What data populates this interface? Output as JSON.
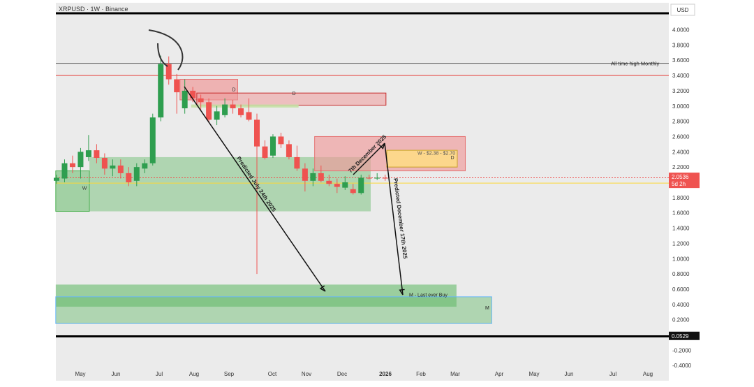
{
  "header": {
    "symbol_label": "XRPUSD · 1W · Binance",
    "currency_button": "USD"
  },
  "colors": {
    "bull": "#26a69a",
    "bull_body": "#2e9e4f",
    "bear": "#ef5350",
    "demand_zone": "#66bb6a",
    "supply_zone": "#ef9a9a",
    "highlight_zone": "#ffe082",
    "blue_zone": "#64b5f6"
  },
  "chart_data": {
    "type": "candlestick",
    "title": "XRPUSD · 1W · Binance",
    "ylim": [
      -0.45,
      4.0
    ],
    "y_ticks": [
      "4.0000",
      "3.8000",
      "3.6000",
      "3.4000",
      "3.2000",
      "3.0000",
      "2.8000",
      "2.6000",
      "2.4000",
      "2.2000",
      "2.0000",
      "1.8000",
      "1.6000",
      "1.4000",
      "1.2000",
      "1.0000",
      "0.8000",
      "0.6000",
      "0.4000",
      "0.2000",
      "0.0000",
      "-0.2000",
      "-0.4000"
    ],
    "x_ticks": [
      "May",
      "Jun",
      "Jul",
      "Aug",
      "Sep",
      "Oct",
      "Nov",
      "Dec",
      "2026",
      "Feb",
      "Mar",
      "Apr",
      "May",
      "Jun",
      "Jul",
      "Aug"
    ],
    "candles": [
      {
        "o": 2.02,
        "h": 2.1,
        "l": 1.98,
        "c": 2.06
      },
      {
        "o": 2.05,
        "h": 2.3,
        "l": 2.0,
        "c": 2.25
      },
      {
        "o": 2.25,
        "h": 2.35,
        "l": 2.12,
        "c": 2.2
      },
      {
        "o": 2.2,
        "h": 2.45,
        "l": 2.05,
        "c": 2.4
      },
      {
        "o": 2.33,
        "h": 2.62,
        "l": 2.28,
        "c": 2.42
      },
      {
        "o": 2.42,
        "h": 2.5,
        "l": 2.25,
        "c": 2.32
      },
      {
        "o": 2.32,
        "h": 2.38,
        "l": 2.1,
        "c": 2.18
      },
      {
        "o": 2.18,
        "h": 2.3,
        "l": 2.08,
        "c": 2.22
      },
      {
        "o": 2.22,
        "h": 2.3,
        "l": 2.05,
        "c": 2.12
      },
      {
        "o": 2.12,
        "h": 2.2,
        "l": 1.95,
        "c": 2.0
      },
      {
        "o": 2.02,
        "h": 2.25,
        "l": 1.95,
        "c": 2.2
      },
      {
        "o": 2.18,
        "h": 2.3,
        "l": 2.12,
        "c": 2.25
      },
      {
        "o": 2.25,
        "h": 2.9,
        "l": 2.22,
        "c": 2.85
      },
      {
        "o": 2.85,
        "h": 3.66,
        "l": 2.8,
        "c": 3.55
      },
      {
        "o": 3.55,
        "h": 3.65,
        "l": 3.28,
        "c": 3.35
      },
      {
        "o": 3.35,
        "h": 3.42,
        "l": 2.9,
        "c": 3.18
      },
      {
        "o": 2.97,
        "h": 3.35,
        "l": 2.9,
        "c": 3.2
      },
      {
        "o": 3.2,
        "h": 3.25,
        "l": 3.05,
        "c": 3.1
      },
      {
        "o": 3.1,
        "h": 3.15,
        "l": 2.95,
        "c": 3.05
      },
      {
        "o": 3.05,
        "h": 3.1,
        "l": 2.78,
        "c": 2.82
      },
      {
        "o": 2.82,
        "h": 3.0,
        "l": 2.75,
        "c": 2.93
      },
      {
        "o": 2.88,
        "h": 3.1,
        "l": 2.85,
        "c": 3.02
      },
      {
        "o": 3.02,
        "h": 3.08,
        "l": 2.9,
        "c": 2.97
      },
      {
        "o": 2.97,
        "h": 3.02,
        "l": 2.85,
        "c": 2.88
      },
      {
        "o": 2.92,
        "h": 3.1,
        "l": 2.8,
        "c": 2.82
      },
      {
        "o": 2.82,
        "h": 2.9,
        "l": 0.8,
        "c": 2.47
      },
      {
        "o": 2.47,
        "h": 2.55,
        "l": 2.3,
        "c": 2.32
      },
      {
        "o": 2.35,
        "h": 2.63,
        "l": 2.32,
        "c": 2.6
      },
      {
        "o": 2.6,
        "h": 2.65,
        "l": 2.45,
        "c": 2.5
      },
      {
        "o": 2.5,
        "h": 2.55,
        "l": 2.3,
        "c": 2.33
      },
      {
        "o": 2.33,
        "h": 2.48,
        "l": 2.15,
        "c": 2.18
      },
      {
        "o": 2.18,
        "h": 2.25,
        "l": 1.88,
        "c": 2.02
      },
      {
        "o": 2.02,
        "h": 2.18,
        "l": 1.95,
        "c": 2.12
      },
      {
        "o": 2.12,
        "h": 2.22,
        "l": 2.0,
        "c": 2.02
      },
      {
        "o": 2.02,
        "h": 2.1,
        "l": 1.95,
        "c": 1.98
      },
      {
        "o": 1.98,
        "h": 2.05,
        "l": 1.86,
        "c": 1.94
      },
      {
        "o": 1.93,
        "h": 2.08,
        "l": 1.9,
        "c": 2.0
      },
      {
        "o": 1.91,
        "h": 1.98,
        "l": 1.84,
        "c": 1.86
      },
      {
        "o": 1.86,
        "h": 2.1,
        "l": 1.84,
        "c": 2.06
      },
      {
        "o": 2.06,
        "h": 2.1,
        "l": 2.04,
        "c": 2.05
      },
      {
        "o": 2.05,
        "h": 2.12,
        "l": 2.03,
        "c": 2.06
      },
      {
        "o": 2.06,
        "h": 2.1,
        "l": 2.02,
        "c": 2.05
      }
    ],
    "horizontal_lines": {
      "all_time_high_monthly": 3.56,
      "red_level": 3.4,
      "yellow_level": 1.99,
      "black_bottom": 0.0
    },
    "labels": {
      "all_time_high": "All time high Monthly",
      "price_tag": "2.0536",
      "countdown_tag": "5d 2h",
      "bottom_tag": "0.0529",
      "weekly_zone": "W",
      "daily_zone_1": "D",
      "daily_zone_2": "D",
      "daily_zone_3": "D",
      "highlight_text": "W - $2.38 - $2.70",
      "monthly_zone": "M - Last ever Buy",
      "monthly_zone_2": "M",
      "arrow_july": "Predicted July 24th 2025",
      "arrow_dec": "Predicted December 17th 2025",
      "arrow_dec_up": "7th December 2025"
    }
  }
}
